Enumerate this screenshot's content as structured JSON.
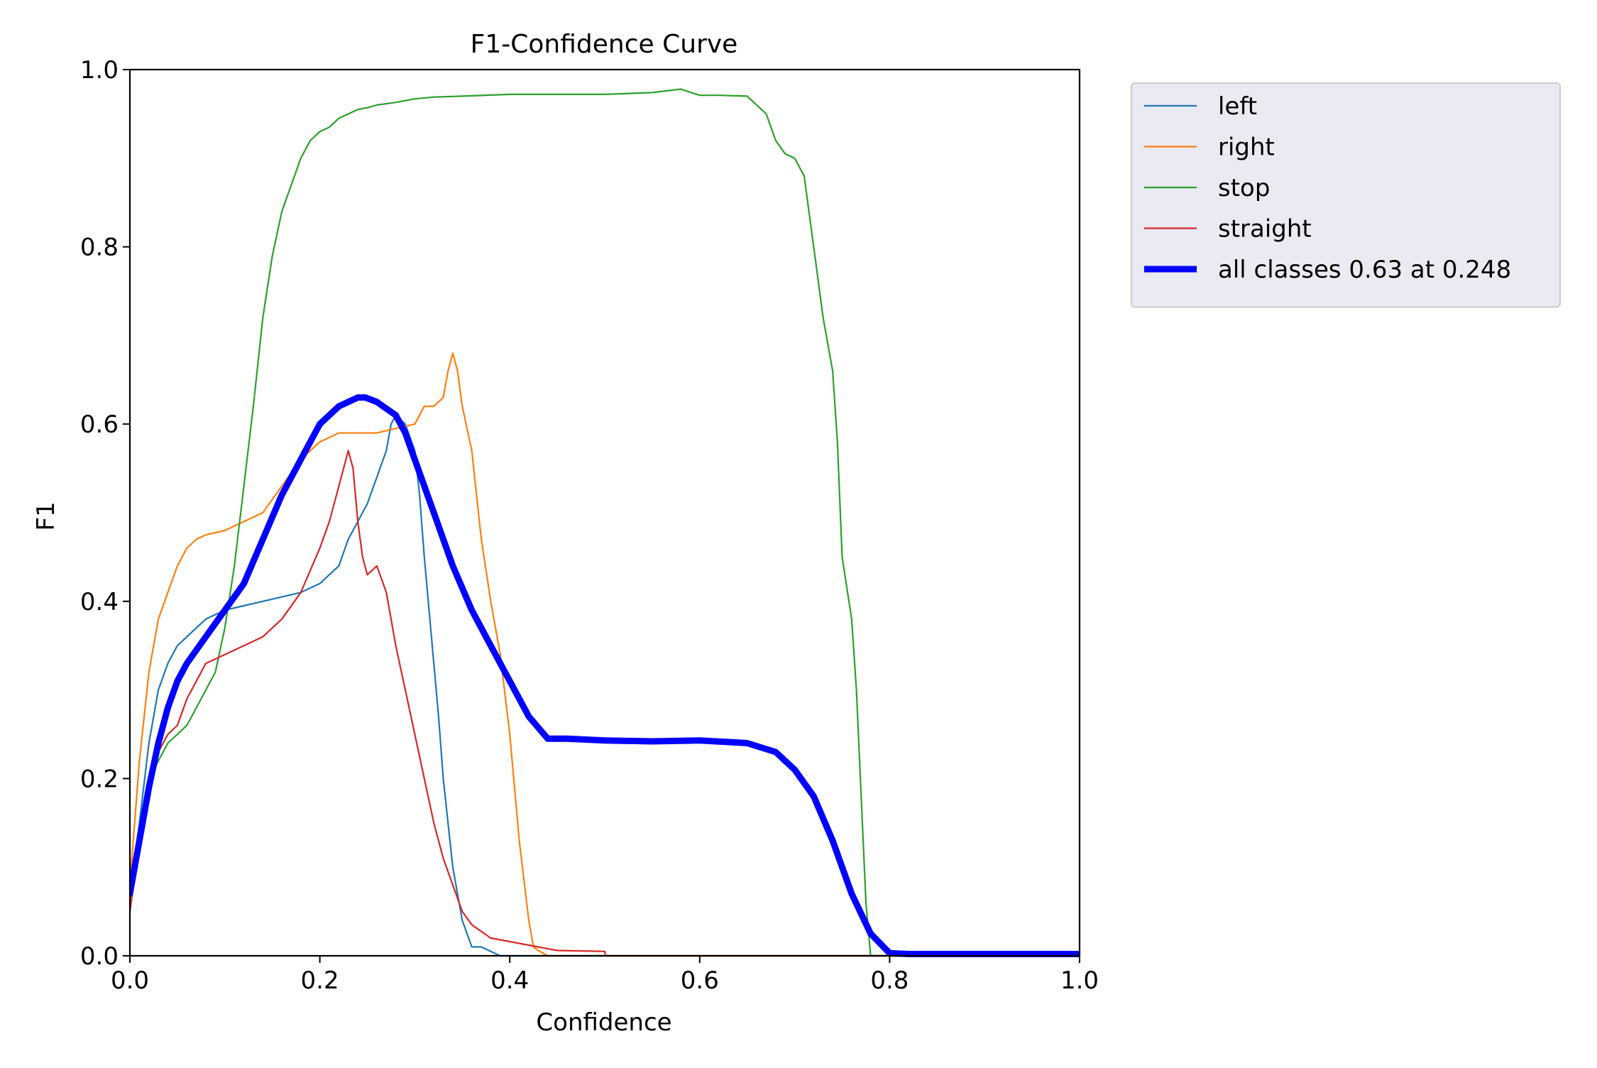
{
  "chart_data": {
    "type": "line",
    "title": "F1-Confidence Curve",
    "xlabel": "Confidence",
    "ylabel": "F1",
    "xlim": [
      0.0,
      1.0
    ],
    "ylim": [
      0.0,
      1.0
    ],
    "xticks": [
      "0.0",
      "0.2",
      "0.4",
      "0.6",
      "0.8",
      "1.0"
    ],
    "yticks": [
      "0.0",
      "0.2",
      "0.4",
      "0.6",
      "0.8",
      "1.0"
    ],
    "grid": false,
    "legend_position": "outside-top-right",
    "series": [
      {
        "name": "left",
        "color": "#1f77b4",
        "thick": false,
        "x": [
          0.0,
          0.01,
          0.02,
          0.03,
          0.04,
          0.05,
          0.06,
          0.08,
          0.1,
          0.12,
          0.14,
          0.16,
          0.18,
          0.2,
          0.22,
          0.23,
          0.24,
          0.25,
          0.26,
          0.27,
          0.275,
          0.28,
          0.285,
          0.29,
          0.3,
          0.305,
          0.31,
          0.315,
          0.32,
          0.325,
          0.33,
          0.335,
          0.34,
          0.35,
          0.36,
          0.37,
          0.38,
          0.39,
          0.4,
          1.0
        ],
        "y": [
          0.07,
          0.15,
          0.24,
          0.3,
          0.33,
          0.35,
          0.36,
          0.38,
          0.39,
          0.395,
          0.4,
          0.405,
          0.41,
          0.42,
          0.44,
          0.47,
          0.49,
          0.51,
          0.54,
          0.57,
          0.6,
          0.61,
          0.605,
          0.6,
          0.57,
          0.52,
          0.45,
          0.39,
          0.33,
          0.27,
          0.2,
          0.15,
          0.1,
          0.04,
          0.01,
          0.01,
          0.005,
          0.0,
          0.0,
          0.0
        ]
      },
      {
        "name": "right",
        "color": "#ff7f0e",
        "thick": false,
        "x": [
          0.0,
          0.01,
          0.02,
          0.03,
          0.04,
          0.05,
          0.06,
          0.07,
          0.08,
          0.1,
          0.12,
          0.14,
          0.16,
          0.18,
          0.2,
          0.22,
          0.24,
          0.26,
          0.28,
          0.3,
          0.31,
          0.32,
          0.33,
          0.335,
          0.34,
          0.345,
          0.35,
          0.36,
          0.37,
          0.38,
          0.39,
          0.4,
          0.41,
          0.42,
          0.425,
          0.43,
          0.44,
          0.45,
          0.5,
          1.0
        ],
        "y": [
          0.08,
          0.22,
          0.32,
          0.38,
          0.41,
          0.44,
          0.46,
          0.47,
          0.475,
          0.48,
          0.49,
          0.5,
          0.53,
          0.56,
          0.58,
          0.59,
          0.59,
          0.59,
          0.595,
          0.6,
          0.62,
          0.62,
          0.63,
          0.66,
          0.68,
          0.66,
          0.62,
          0.57,
          0.47,
          0.4,
          0.34,
          0.25,
          0.13,
          0.04,
          0.01,
          0.006,
          0.0,
          0.0,
          0.0,
          0.0
        ]
      },
      {
        "name": "stop",
        "color": "#2ca02c",
        "thick": false,
        "x": [
          0.0,
          0.02,
          0.04,
          0.06,
          0.07,
          0.08,
          0.09,
          0.1,
          0.11,
          0.12,
          0.13,
          0.14,
          0.15,
          0.16,
          0.17,
          0.18,
          0.19,
          0.2,
          0.21,
          0.22,
          0.23,
          0.24,
          0.25,
          0.26,
          0.28,
          0.3,
          0.32,
          0.35,
          0.4,
          0.45,
          0.5,
          0.55,
          0.58,
          0.6,
          0.62,
          0.65,
          0.66,
          0.67,
          0.68,
          0.69,
          0.7,
          0.71,
          0.72,
          0.73,
          0.74,
          0.745,
          0.75,
          0.76,
          0.765,
          0.77,
          0.775,
          0.78,
          1.0
        ],
        "y": [
          0.05,
          0.2,
          0.24,
          0.26,
          0.28,
          0.3,
          0.32,
          0.37,
          0.44,
          0.53,
          0.62,
          0.72,
          0.79,
          0.84,
          0.87,
          0.9,
          0.92,
          0.93,
          0.935,
          0.945,
          0.95,
          0.955,
          0.957,
          0.96,
          0.963,
          0.967,
          0.969,
          0.97,
          0.972,
          0.972,
          0.972,
          0.974,
          0.978,
          0.971,
          0.971,
          0.97,
          0.96,
          0.95,
          0.92,
          0.905,
          0.9,
          0.88,
          0.8,
          0.72,
          0.66,
          0.58,
          0.45,
          0.38,
          0.3,
          0.18,
          0.06,
          0.0,
          0.0
        ]
      },
      {
        "name": "straight",
        "color": "#d62728",
        "thick": false,
        "x": [
          0.0,
          0.01,
          0.02,
          0.03,
          0.04,
          0.05,
          0.06,
          0.07,
          0.08,
          0.1,
          0.12,
          0.14,
          0.16,
          0.18,
          0.2,
          0.21,
          0.22,
          0.23,
          0.235,
          0.24,
          0.245,
          0.25,
          0.26,
          0.27,
          0.28,
          0.29,
          0.3,
          0.31,
          0.32,
          0.33,
          0.34,
          0.35,
          0.36,
          0.38,
          0.4,
          0.45,
          0.5,
          0.501,
          1.0
        ],
        "y": [
          0.05,
          0.13,
          0.2,
          0.23,
          0.25,
          0.26,
          0.29,
          0.31,
          0.33,
          0.34,
          0.35,
          0.36,
          0.38,
          0.41,
          0.46,
          0.49,
          0.53,
          0.57,
          0.55,
          0.49,
          0.45,
          0.43,
          0.44,
          0.41,
          0.35,
          0.3,
          0.25,
          0.2,
          0.15,
          0.11,
          0.08,
          0.05,
          0.035,
          0.02,
          0.016,
          0.006,
          0.005,
          0.0,
          0.0
        ]
      },
      {
        "name": "all classes 0.63 at 0.248",
        "color": "#0000ff",
        "thick": true,
        "x": [
          0.0,
          0.01,
          0.02,
          0.03,
          0.04,
          0.05,
          0.06,
          0.08,
          0.1,
          0.12,
          0.14,
          0.16,
          0.18,
          0.2,
          0.22,
          0.24,
          0.248,
          0.26,
          0.28,
          0.29,
          0.3,
          0.32,
          0.34,
          0.36,
          0.38,
          0.4,
          0.42,
          0.44,
          0.46,
          0.5,
          0.55,
          0.6,
          0.65,
          0.68,
          0.7,
          0.72,
          0.74,
          0.76,
          0.78,
          0.8,
          0.82,
          0.9,
          1.0
        ],
        "y": [
          0.07,
          0.13,
          0.19,
          0.24,
          0.28,
          0.31,
          0.33,
          0.36,
          0.39,
          0.42,
          0.47,
          0.52,
          0.56,
          0.6,
          0.62,
          0.63,
          0.63,
          0.625,
          0.61,
          0.59,
          0.56,
          0.5,
          0.44,
          0.39,
          0.35,
          0.31,
          0.27,
          0.245,
          0.245,
          0.243,
          0.242,
          0.243,
          0.24,
          0.23,
          0.21,
          0.18,
          0.13,
          0.07,
          0.025,
          0.003,
          0.002,
          0.002,
          0.002
        ]
      }
    ]
  }
}
